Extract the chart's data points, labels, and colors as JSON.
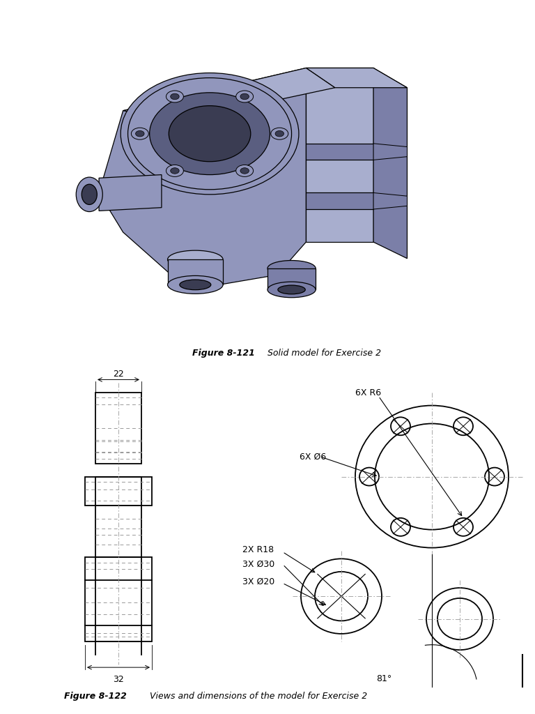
{
  "fig_width": 7.68,
  "fig_height": 10.24,
  "bg_color": "#ffffff",
  "lc": "#000000",
  "hc": "#999999",
  "sc1": "#9196bc",
  "sc2": "#a8aece",
  "sc3": "#7b7fa8",
  "sc_dark": "#5a5e80",
  "sc_hole": "#3a3c52",
  "caption1_bold": "Figure 8-121",
  "caption1_rest": " Solid model for Exercise 2",
  "caption2_bold": "Figure 8-122",
  "caption2_rest": " Views and dimensions of the model for Exercise 2",
  "dim_22": "22",
  "dim_32": "32",
  "lbl_6xR6": "6X R6",
  "lbl_6xD6": "6X Ø6",
  "lbl_2xR18": "2X R18",
  "lbl_3xD30": "3X Ø30",
  "lbl_3xD20": "3X Ø20",
  "lbl_81": "81°"
}
